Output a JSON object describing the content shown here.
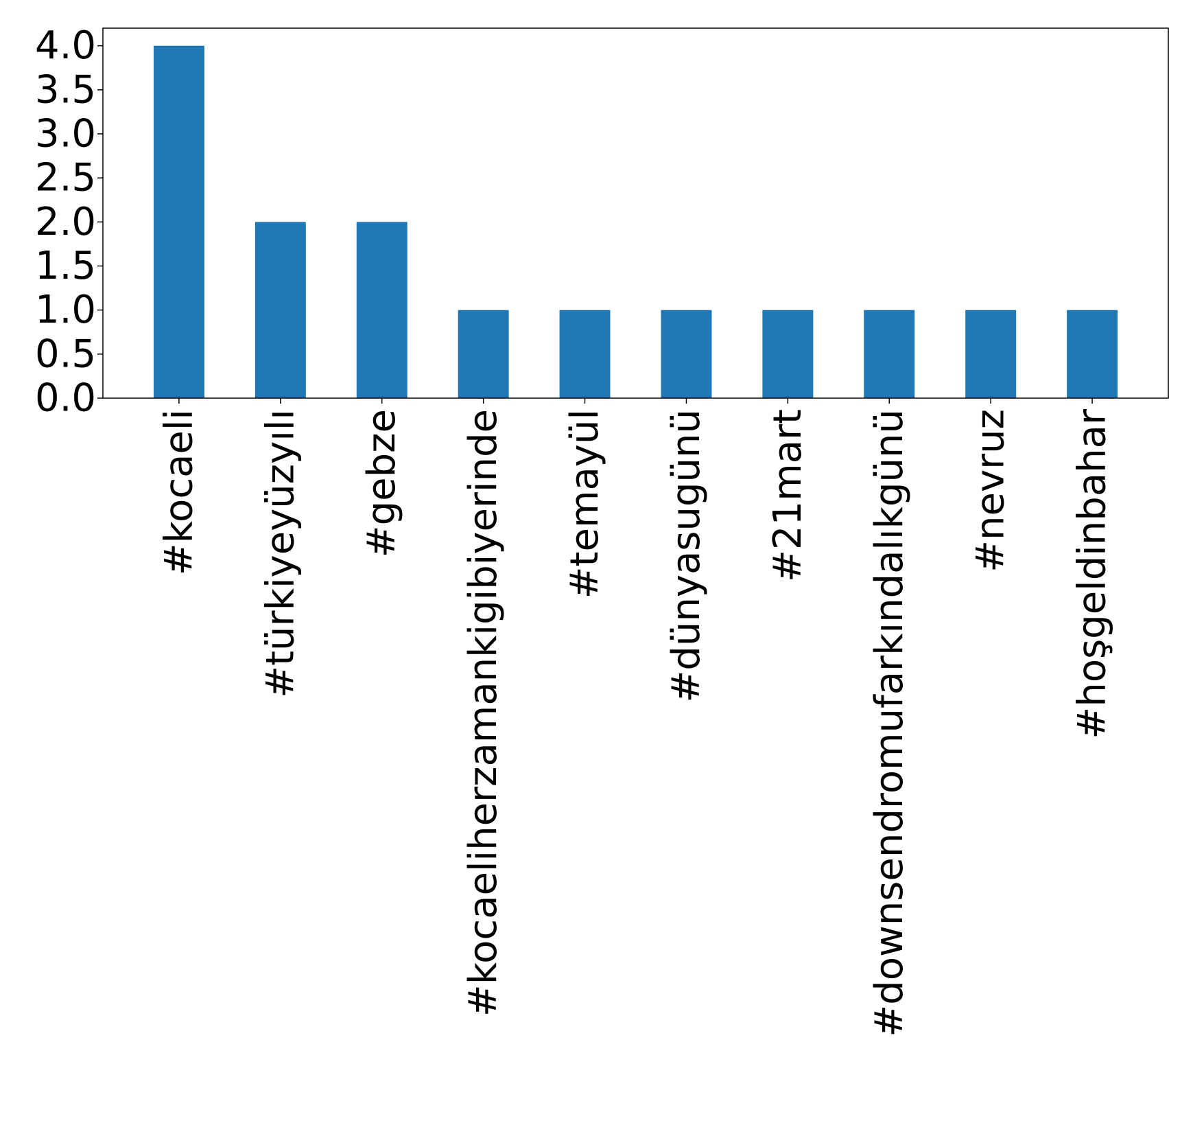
{
  "chart_data": {
    "type": "bar",
    "title": "",
    "xlabel": "",
    "ylabel": "",
    "categories": [
      "#kocaeli",
      "#türkiyeyüzyılı",
      "#gebze",
      "#kocaeliherzamankigibiyerinde",
      "#temayül",
      "#dünyasugünü",
      "#21mart",
      "#downsendromufarkındalıkgünü",
      "#nevruz",
      "#hoşgeldinbahar"
    ],
    "values": [
      4,
      2,
      2,
      1,
      1,
      1,
      1,
      1,
      1,
      1
    ],
    "ylim": [
      0,
      4.2
    ],
    "yticks": [
      0.0,
      0.5,
      1.0,
      1.5,
      2.0,
      2.5,
      3.0,
      3.5,
      4.0
    ],
    "ytick_labels": [
      "0.0",
      "0.5",
      "1.0",
      "1.5",
      "2.0",
      "2.5",
      "3.0",
      "3.5",
      "4.0"
    ],
    "bar_color": "#1f77b4",
    "grid": false,
    "legend": "none"
  }
}
